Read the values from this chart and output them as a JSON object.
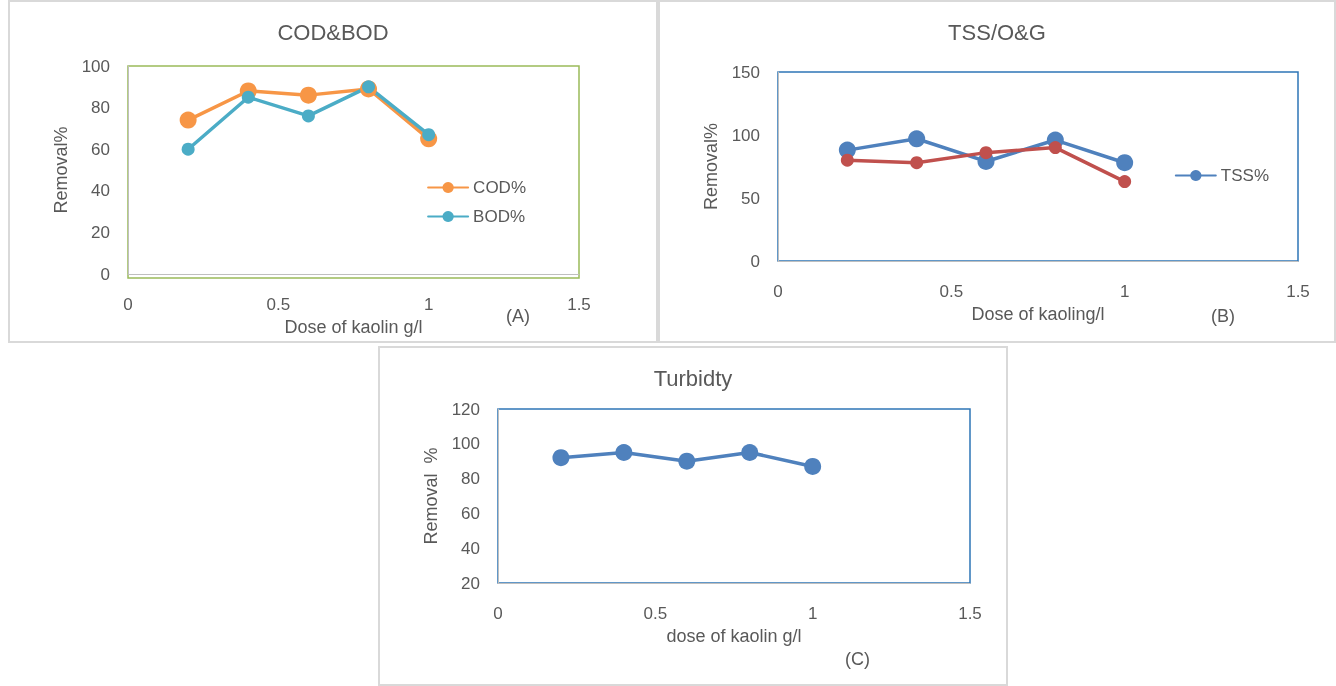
{
  "chart_data": [
    {
      "type": "line",
      "title": "COD&BOD",
      "xlabel": "Dose of kaolin g/l",
      "ylabel": "Removal%",
      "annotations": [
        "(A)"
      ],
      "x": [
        0.2,
        0.4,
        0.6,
        0.8,
        1
      ],
      "series": [
        {
          "name": "COD%",
          "color": "#f79646",
          "values": [
            74,
            88,
            86,
            89,
            65
          ]
        },
        {
          "name": "BOD%",
          "color": "#4bacc6",
          "values": [
            60,
            85,
            76,
            90,
            67
          ]
        }
      ],
      "xlim": [
        0,
        1.5
      ],
      "xticks": [
        0,
        0.5,
        1,
        1.5
      ],
      "ylim": [
        0,
        100
      ],
      "yticks": [
        0,
        20,
        40,
        60,
        80,
        100
      ],
      "grid": false,
      "legend": "right",
      "marker": "circle",
      "line_style": "solid"
    },
    {
      "type": "line",
      "title": "TSS/O&G",
      "xlabel": "Dose of kaoling/l",
      "ylabel": "Removal%",
      "annotations": [
        "(B)"
      ],
      "x": [
        0.2,
        0.4,
        0.6,
        0.8,
        1
      ],
      "series": [
        {
          "name": "TSS%",
          "color": "#4f81bd",
          "values": [
            88,
            97,
            79,
            96,
            78
          ]
        },
        {
          "color": "#c0504d",
          "values": [
            80,
            78,
            86,
            90,
            63
          ]
        }
      ],
      "xlim": [
        0,
        1.5
      ],
      "xticks": [
        0,
        0.5,
        1,
        1.5
      ],
      "ylim": [
        0,
        150
      ],
      "yticks": [
        0,
        50,
        100,
        150
      ],
      "grid": false,
      "legend": "right",
      "marker": "circle",
      "line_style": "solid"
    },
    {
      "type": "line",
      "title": "Turbidty",
      "xlabel": "dose of kaolin g/l",
      "ylabel": "Removal  %",
      "annotations": [
        "(C)"
      ],
      "x": [
        0.2,
        0.4,
        0.6,
        0.8,
        1
      ],
      "series": [
        {
          "color": "#4f81bd",
          "values": [
            92,
            95,
            90,
            95,
            87
          ]
        }
      ],
      "xlim": [
        0,
        1.5
      ],
      "xticks": [
        0,
        0.5,
        1,
        1.5
      ],
      "ylim": [
        20,
        120
      ],
      "yticks": [
        20,
        40,
        60,
        80,
        100,
        120
      ],
      "grid": false,
      "legend": false,
      "marker": "circle",
      "line_style": "solid"
    }
  ]
}
